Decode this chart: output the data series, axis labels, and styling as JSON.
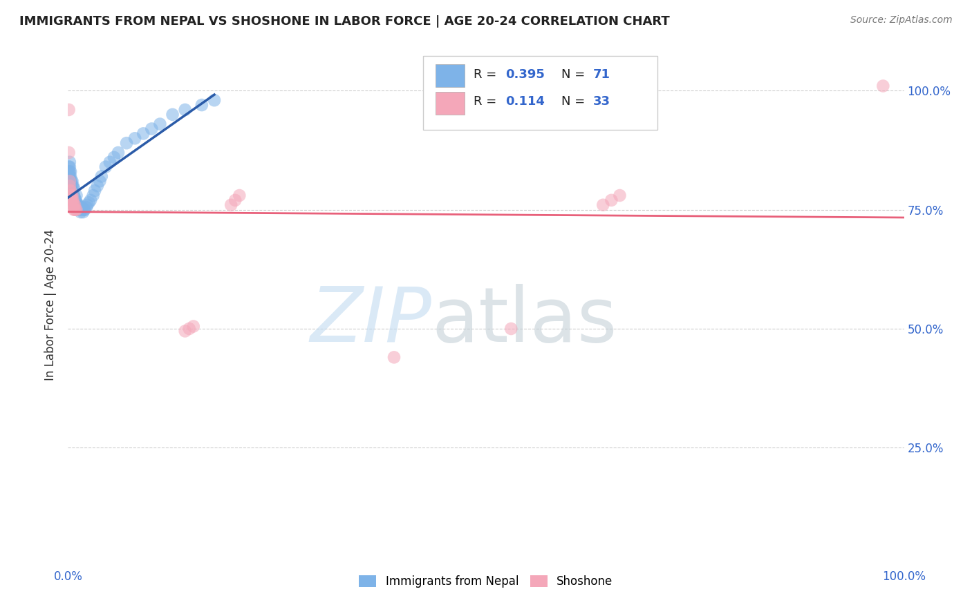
{
  "title": "IMMIGRANTS FROM NEPAL VS SHOSHONE IN LABOR FORCE | AGE 20-24 CORRELATION CHART",
  "source_text": "Source: ZipAtlas.com",
  "ylabel": "In Labor Force | Age 20-24",
  "xlim": [
    0.0,
    1.0
  ],
  "ylim": [
    0.0,
    1.1
  ],
  "nepal_color": "#7EB3E8",
  "shoshone_color": "#F4A7B9",
  "nepal_R": 0.395,
  "nepal_N": 71,
  "shoshone_R": 0.114,
  "shoshone_N": 33,
  "nepal_line_color": "#2B5BA8",
  "shoshone_line_color": "#E8607A",
  "background_color": "#FFFFFF",
  "grid_color": "#CCCCCC",
  "nepal_x": [
    0.001,
    0.001,
    0.001,
    0.001,
    0.002,
    0.002,
    0.002,
    0.002,
    0.002,
    0.002,
    0.002,
    0.003,
    0.003,
    0.003,
    0.003,
    0.003,
    0.004,
    0.004,
    0.004,
    0.005,
    0.005,
    0.005,
    0.005,
    0.006,
    0.006,
    0.006,
    0.007,
    0.007,
    0.007,
    0.008,
    0.008,
    0.009,
    0.009,
    0.01,
    0.01,
    0.01,
    0.011,
    0.011,
    0.012,
    0.013,
    0.013,
    0.014,
    0.015,
    0.015,
    0.016,
    0.017,
    0.018,
    0.019,
    0.02,
    0.022,
    0.023,
    0.025,
    0.027,
    0.03,
    0.032,
    0.035,
    0.038,
    0.04,
    0.045,
    0.05,
    0.055,
    0.06,
    0.07,
    0.08,
    0.09,
    0.1,
    0.11,
    0.125,
    0.14,
    0.16,
    0.175
  ],
  "nepal_y": [
    0.8,
    0.82,
    0.83,
    0.84,
    0.79,
    0.8,
    0.81,
    0.82,
    0.83,
    0.84,
    0.85,
    0.79,
    0.8,
    0.81,
    0.82,
    0.83,
    0.79,
    0.8,
    0.81,
    0.78,
    0.79,
    0.8,
    0.81,
    0.775,
    0.785,
    0.8,
    0.77,
    0.78,
    0.795,
    0.765,
    0.775,
    0.76,
    0.77,
    0.755,
    0.765,
    0.78,
    0.75,
    0.76,
    0.755,
    0.75,
    0.76,
    0.755,
    0.745,
    0.755,
    0.75,
    0.755,
    0.745,
    0.75,
    0.75,
    0.755,
    0.76,
    0.765,
    0.77,
    0.78,
    0.79,
    0.8,
    0.81,
    0.82,
    0.84,
    0.85,
    0.86,
    0.87,
    0.89,
    0.9,
    0.91,
    0.92,
    0.93,
    0.95,
    0.96,
    0.97,
    0.98
  ],
  "shoshone_x": [
    0.001,
    0.001,
    0.002,
    0.002,
    0.002,
    0.003,
    0.003,
    0.003,
    0.004,
    0.004,
    0.005,
    0.005,
    0.005,
    0.006,
    0.006,
    0.007,
    0.007,
    0.008,
    0.008,
    0.009,
    0.01,
    0.195,
    0.2,
    0.205,
    0.53,
    0.64,
    0.65,
    0.66,
    0.975,
    0.14,
    0.145,
    0.15,
    0.39
  ],
  "shoshone_y": [
    0.96,
    0.87,
    0.81,
    0.8,
    0.79,
    0.79,
    0.78,
    0.77,
    0.78,
    0.77,
    0.78,
    0.77,
    0.76,
    0.77,
    0.76,
    0.76,
    0.75,
    0.76,
    0.75,
    0.75,
    0.75,
    0.76,
    0.77,
    0.78,
    0.5,
    0.76,
    0.77,
    0.78,
    1.01,
    0.495,
    0.5,
    0.505,
    0.44
  ]
}
